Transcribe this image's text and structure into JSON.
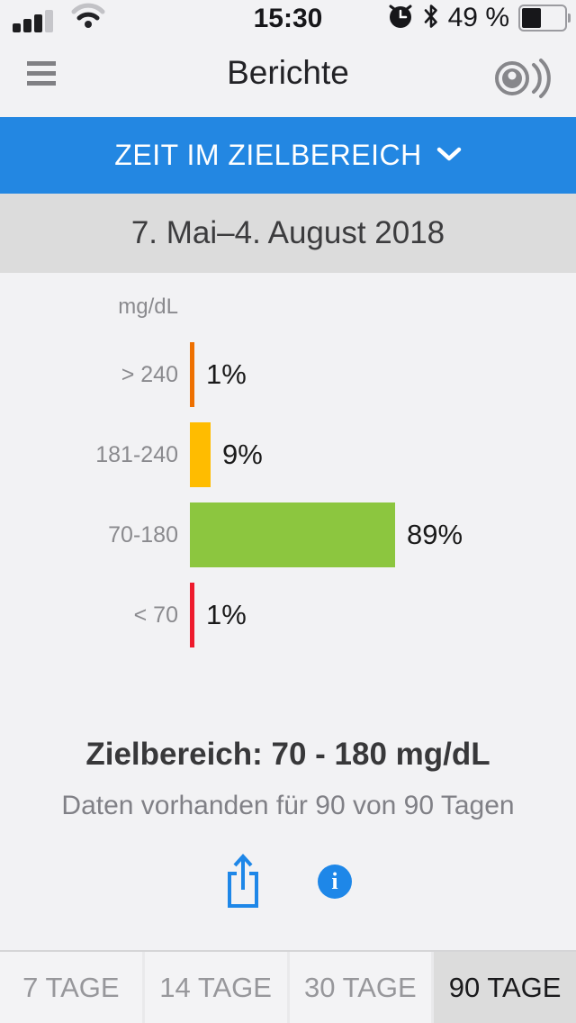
{
  "status_bar": {
    "time": "15:30",
    "battery_percent": "49 %",
    "signal_bars_filled": 3,
    "signal_bars_total": 4,
    "icons": [
      "signal-icon",
      "wifi-icon",
      "alarm-clock-icon",
      "bluetooth-icon",
      "battery-icon"
    ]
  },
  "header": {
    "title": "Berichte",
    "icons": [
      "menu-icon",
      "sensor-signal-icon"
    ]
  },
  "report_selector": {
    "label": "ZEIT IM ZIELBEREICH",
    "icon": "chevron-down-icon"
  },
  "date_range": {
    "text": "7. Mai–4. August 2018"
  },
  "chart_data": {
    "type": "bar",
    "orientation": "horizontal",
    "unit_label": "mg/dL",
    "categories": [
      "> 240",
      "181-240",
      "70-180",
      "< 70"
    ],
    "values": [
      1,
      9,
      89,
      1
    ],
    "value_labels": [
      "1%",
      "9%",
      "89%",
      "1%"
    ],
    "bar_colors": [
      "#EE7000",
      "#FFBC00",
      "#8CC63F",
      "#EE1B2D"
    ],
    "xlim": [
      0,
      100
    ],
    "grid": false,
    "legend": false
  },
  "summary": {
    "target_range": "Zielbereich: 70 - 180 mg/dL",
    "availability": "Daten vorhanden für 90 von 90 Tagen"
  },
  "actions": {
    "icons": [
      "share-icon",
      "info-icon"
    ],
    "accent_color": "#1E87E8"
  },
  "tab_bar": {
    "tabs": [
      {
        "label": "7 TAGE",
        "selected": false
      },
      {
        "label": "14 TAGE",
        "selected": false
      },
      {
        "label": "30 TAGE",
        "selected": false
      },
      {
        "label": "90 TAGE",
        "selected": true
      }
    ]
  },
  "colors": {
    "banner_blue": "#2387E2",
    "action_blue": "#1E87E8",
    "date_bar_bg": "#DCDCDC",
    "selected_tab_bg": "#DCDCDC"
  }
}
